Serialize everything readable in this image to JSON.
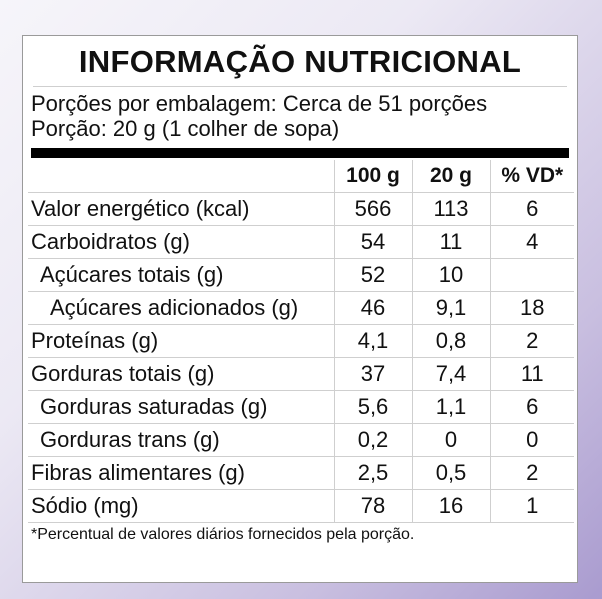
{
  "title": "INFORMAÇÃO NUTRICIONAL",
  "servings_per_package": "Porções por embalagem: Cerca de 51 porções",
  "serving_size": "Porção: 20 g (1 colher de sopa)",
  "columns": [
    "100 g",
    "20 g",
    "% VD*"
  ],
  "rows": [
    {
      "name": "Valor energético (kcal)",
      "indent": 0,
      "values": [
        "566",
        "113",
        "6"
      ]
    },
    {
      "name": "Carboidratos (g)",
      "indent": 0,
      "values": [
        "54",
        "11",
        "4"
      ]
    },
    {
      "name": "Açúcares totais (g)",
      "indent": 1,
      "values": [
        "52",
        "10",
        ""
      ]
    },
    {
      "name": "Açúcares adicionados (g)",
      "indent": 2,
      "values": [
        "46",
        "9,1",
        "18"
      ]
    },
    {
      "name": "Proteínas (g)",
      "indent": 0,
      "values": [
        "4,1",
        "0,8",
        "2"
      ]
    },
    {
      "name": "Gorduras totais (g)",
      "indent": 0,
      "values": [
        "37",
        "7,4",
        "11"
      ]
    },
    {
      "name": "Gorduras saturadas (g)",
      "indent": 1,
      "values": [
        "5,6",
        "1,1",
        "6"
      ]
    },
    {
      "name": "Gorduras trans (g)",
      "indent": 1,
      "values": [
        "0,2",
        "0",
        "0"
      ]
    },
    {
      "name": "Fibras alimentares (g)",
      "indent": 0,
      "values": [
        "2,5",
        "0,5",
        "2"
      ]
    },
    {
      "name": "Sódio (mg)",
      "indent": 0,
      "values": [
        "78",
        "16",
        "1"
      ]
    }
  ],
  "footnote": "*Percentual de valores diários fornecidos pela porção."
}
